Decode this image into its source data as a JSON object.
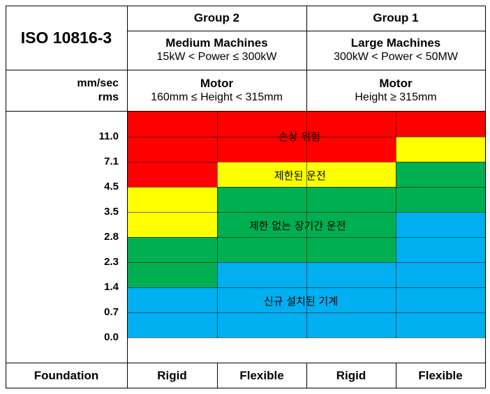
{
  "header": {
    "title": "ISO 10816-3",
    "group2": "Group 2",
    "group1": "Group 1",
    "medium_title": "Medium Machines",
    "medium_range": "15kW < Power ≤ 300kW",
    "large_title": "Large Machines",
    "large_range": "300kW < Power < 50MW",
    "unit_line1": "mm/sec",
    "unit_line2": "rms",
    "motor_label_1": "Motor",
    "motor_range_1": "160mm ≤ Height < 315mm",
    "motor_label_2": "Motor",
    "motor_range_2": "Height ≥ 315mm"
  },
  "scale": {
    "ticks": [
      "11.0",
      "7.1",
      "4.5",
      "3.5",
      "2.8",
      "2.3",
      "1.4",
      "0.7",
      "0.0"
    ]
  },
  "zones": {
    "danger": "손상 위험",
    "restricted": "제한된 운전",
    "unrestricted": "제한 없는 장기간 운전",
    "new": "신규 설치된 기계"
  },
  "footer": {
    "label": "Foundation",
    "col1": "Rigid",
    "col2": "Flexible",
    "col3": "Rigid",
    "col4": "Flexible"
  },
  "colors": {
    "danger": "#ff0000",
    "restricted": "#ffff00",
    "unrestricted": "#00b050",
    "new": "#00b0f0"
  }
}
